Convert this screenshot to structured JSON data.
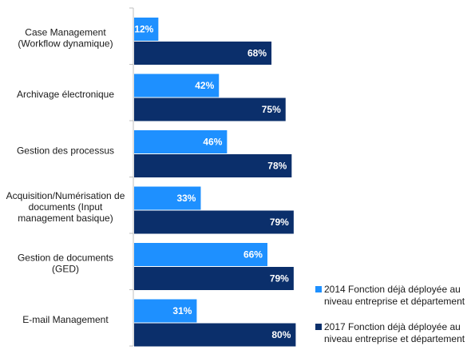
{
  "chart_data": {
    "type": "bar",
    "orientation": "horizontal",
    "categories": [
      [
        "Case Management",
        "(Workflow dynamique)"
      ],
      [
        "Archivage électronique"
      ],
      [
        "Gestion des processus"
      ],
      [
        "Acquisition/Numérisation de",
        "documents (Input",
        "management basique)"
      ],
      [
        "Gestion de documents",
        "(GED)"
      ],
      [
        "E-mail Management"
      ]
    ],
    "series": [
      {
        "name": "2014 Fonction déjà déployée au niveau entreprise et département",
        "legend_lines": [
          "2014 Fonction déjà déployée au",
          "niveau entreprise et département"
        ],
        "values": [
          12,
          42,
          46,
          33,
          66,
          31
        ],
        "labels": [
          "12%",
          "42%",
          "46%",
          "33%",
          "66%",
          "31%"
        ],
        "color": "#1e90ff"
      },
      {
        "name": "2017 Fonction déjà déployée au niveau entreprise et département",
        "legend_lines": [
          "2017 Fonction déjà déployée au",
          "niveau entreprise et département"
        ],
        "values": [
          68,
          75,
          78,
          79,
          79,
          80
        ],
        "labels": [
          "68%",
          "75%",
          "78%",
          "79%",
          "79%",
          "80%"
        ],
        "color": "#0b2f6b"
      }
    ],
    "xlim": [
      0,
      100
    ],
    "unit": "%",
    "legend_position": "bottom-right",
    "grid": false,
    "xlabel": "",
    "ylabel": ""
  }
}
